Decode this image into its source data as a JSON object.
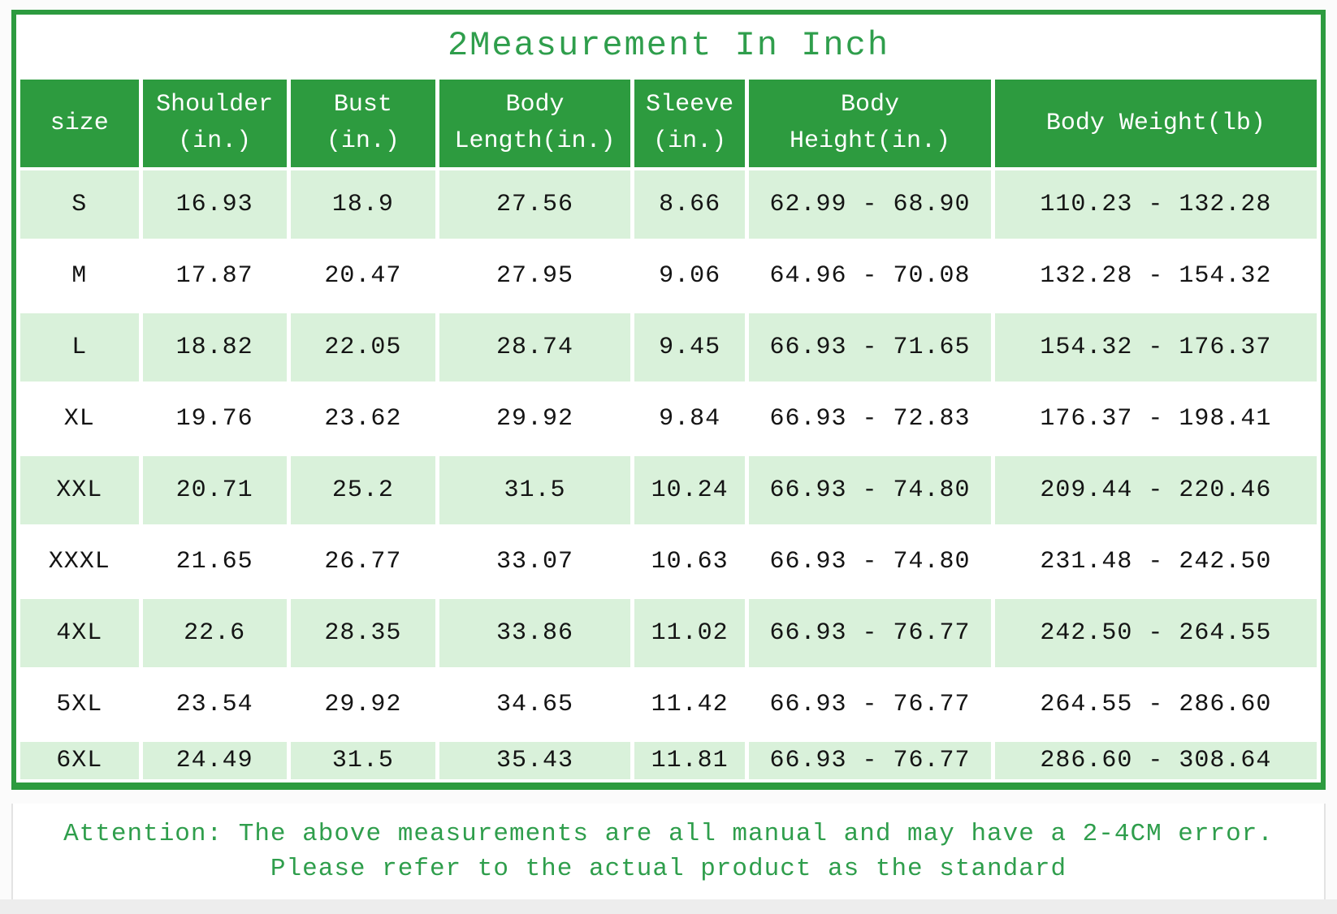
{
  "title": "2Measurement In Inch",
  "theme": {
    "header_green": "#2d9b3f",
    "row_light_green": "#d9f1da",
    "text_green": "#2f9e4c",
    "border_green": "#2d9b3f"
  },
  "attention": {
    "line1": "Attention: The above measurements are all manual and may have a 2-4CM error.",
    "line2": "Please refer to the actual product as the standard"
  },
  "chart_data": {
    "type": "table",
    "title": "2Measurement In Inch",
    "columns": [
      {
        "lines": [
          "size"
        ]
      },
      {
        "lines": [
          "Shoulder",
          "(in.)"
        ]
      },
      {
        "lines": [
          "Bust",
          "(in.)"
        ]
      },
      {
        "lines": [
          "Body",
          "Length(in.)"
        ]
      },
      {
        "lines": [
          "Sleeve",
          "(in.)"
        ]
      },
      {
        "lines": [
          "Body",
          "Height(in.)"
        ]
      },
      {
        "lines": [
          "Body Weight(lb)"
        ]
      }
    ],
    "rows": [
      {
        "cells": [
          "S",
          "16.93",
          "18.9",
          "27.56",
          "8.66",
          "62.99 - 68.90",
          "110.23 - 132.28"
        ]
      },
      {
        "cells": [
          "M",
          "17.87",
          "20.47",
          "27.95",
          "9.06",
          "64.96 - 70.08",
          "132.28 - 154.32"
        ]
      },
      {
        "cells": [
          "L",
          "18.82",
          "22.05",
          "28.74",
          "9.45",
          "66.93 - 71.65",
          "154.32 - 176.37"
        ]
      },
      {
        "cells": [
          "XL",
          "19.76",
          "23.62",
          "29.92",
          "9.84",
          "66.93 - 72.83",
          "176.37 - 198.41"
        ]
      },
      {
        "cells": [
          "XXL",
          "20.71",
          "25.2",
          "31.5",
          "10.24",
          "66.93 - 74.80",
          "209.44 - 220.46"
        ]
      },
      {
        "cells": [
          "XXXL",
          "21.65",
          "26.77",
          "33.07",
          "10.63",
          "66.93 - 74.80",
          "231.48 - 242.50"
        ]
      },
      {
        "cells": [
          "4XL",
          "22.6",
          "28.35",
          "33.86",
          "11.02",
          "66.93 - 76.77",
          "242.50 - 264.55"
        ]
      },
      {
        "cells": [
          "5XL",
          "23.54",
          "29.92",
          "34.65",
          "11.42",
          "66.93 - 76.77",
          "264.55 - 286.60"
        ]
      },
      {
        "cells": [
          "6XL",
          "24.49",
          "31.5",
          "35.43",
          "11.81",
          "66.93 - 76.77",
          "286.60 - 308.64"
        ]
      }
    ]
  }
}
